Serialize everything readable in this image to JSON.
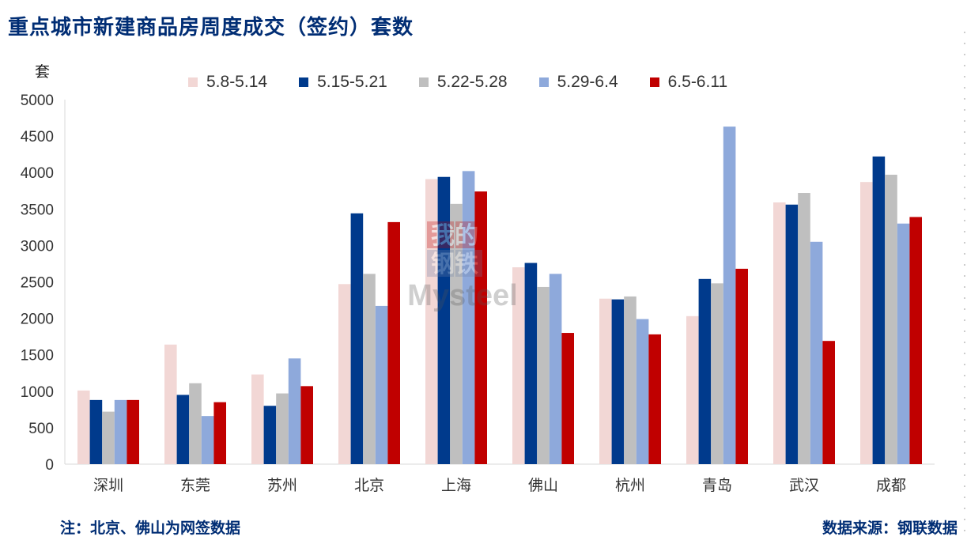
{
  "title": "重点城市新建商品房周度成交（签约）套数",
  "unit_label": "套",
  "footnote_left": "注：北京、佛山为网签数据",
  "footnote_right": "数据来源：钢联数据",
  "watermark": {
    "line1": "我的",
    "line2": "钢铁",
    "brand": "Mysteel"
  },
  "colors": {
    "title": "#002d74",
    "axis": "#d9d9d9",
    "tick_text": "#333333"
  },
  "chart_data": {
    "type": "bar",
    "title": "重点城市新建商品房周度成交（签约）套数",
    "ylabel": "套",
    "xlabel": "",
    "ylim": [
      0,
      5000
    ],
    "yticks": [
      0,
      500,
      1000,
      1500,
      2000,
      2500,
      3000,
      3500,
      4000,
      4500,
      5000
    ],
    "grid": false,
    "legend_position": "top",
    "categories": [
      "深圳",
      "东莞",
      "苏州",
      "北京",
      "上海",
      "佛山",
      "杭州",
      "青岛",
      "武汉",
      "成都"
    ],
    "series": [
      {
        "name": "5.8-5.14",
        "color": "#f2d7d5",
        "values": [
          1010,
          1640,
          1230,
          2470,
          3910,
          2700,
          2270,
          2030,
          3590,
          3870
        ]
      },
      {
        "name": "5.15-5.21",
        "color": "#003a8c",
        "values": [
          880,
          950,
          800,
          3440,
          3940,
          2760,
          2260,
          2540,
          3560,
          4220
        ]
      },
      {
        "name": "5.22-5.28",
        "color": "#bfbfbf",
        "values": [
          720,
          1110,
          970,
          2610,
          3570,
          2430,
          2300,
          2480,
          3720,
          3970
        ]
      },
      {
        "name": "5.29-6.4",
        "color": "#8ea9db",
        "values": [
          880,
          660,
          1450,
          2170,
          4020,
          2610,
          1990,
          4630,
          3050,
          3300
        ]
      },
      {
        "name": "6.5-6.11",
        "color": "#c00000",
        "values": [
          880,
          850,
          1070,
          3320,
          3740,
          1800,
          1780,
          2680,
          1690,
          3390
        ]
      }
    ]
  }
}
